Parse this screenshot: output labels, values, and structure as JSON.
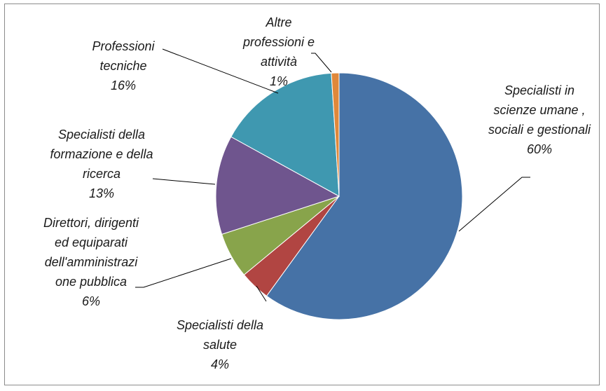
{
  "chart_data": {
    "type": "pie",
    "categories": [
      "Specialisti in scienze umane , sociali e gestionali",
      "Specialisti della salute",
      "Direttori, dirigenti ed equiparati dell'amministrazione pubblica",
      "Specialisti della formazione e della ricerca",
      "Professioni tecniche",
      "Altre professioni e attività"
    ],
    "values": [
      60,
      4,
      6,
      13,
      16,
      1
    ],
    "value_labels": [
      "60%",
      "4%",
      "6%",
      "13%",
      "16%",
      "1%"
    ],
    "colors": [
      "#4672a6",
      "#b14542",
      "#88a44b",
      "#6f558e",
      "#3f98b0",
      "#e0883a"
    ]
  }
}
